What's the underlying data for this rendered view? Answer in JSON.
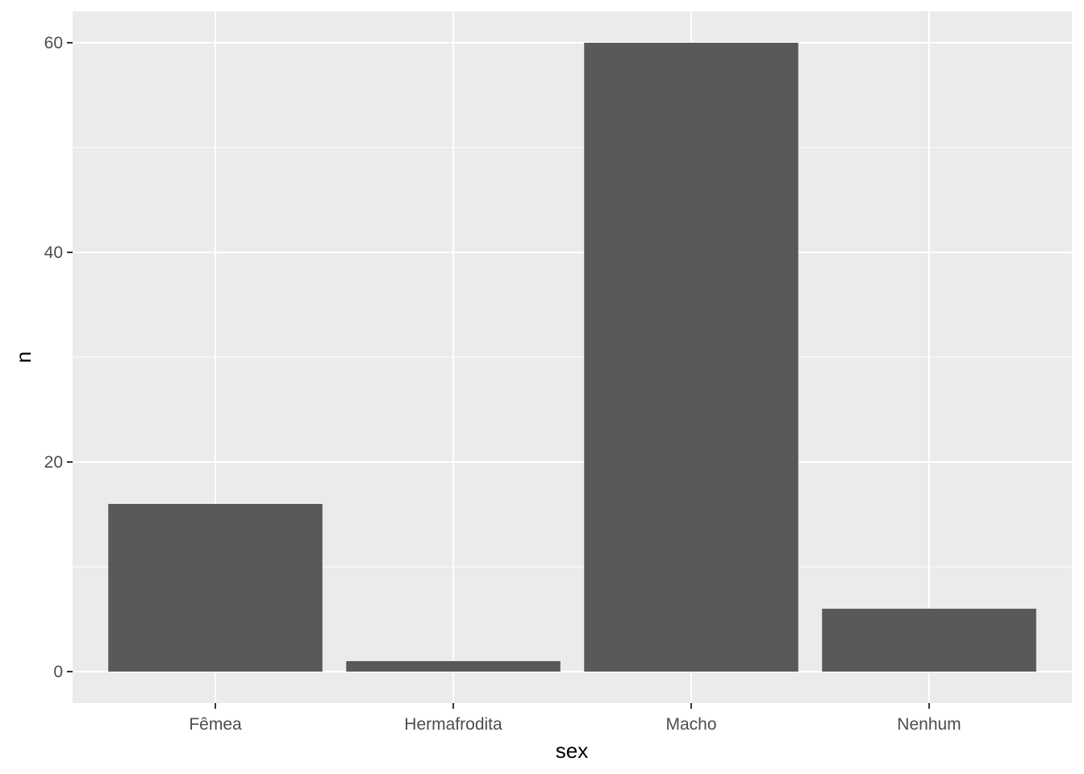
{
  "chart_data": {
    "type": "bar",
    "categories": [
      "Fêmea",
      "Hermafrodita",
      "Macho",
      "Nenhum"
    ],
    "values": [
      16,
      1,
      60,
      6
    ],
    "title": "",
    "xlabel": "sex",
    "ylabel": "n",
    "ylim": [
      -3,
      63
    ],
    "yticks": [
      0,
      20,
      40,
      60
    ],
    "grid": true,
    "colors": {
      "bar": "#595959",
      "panel": "#ebebeb",
      "grid": "#ffffff"
    }
  }
}
